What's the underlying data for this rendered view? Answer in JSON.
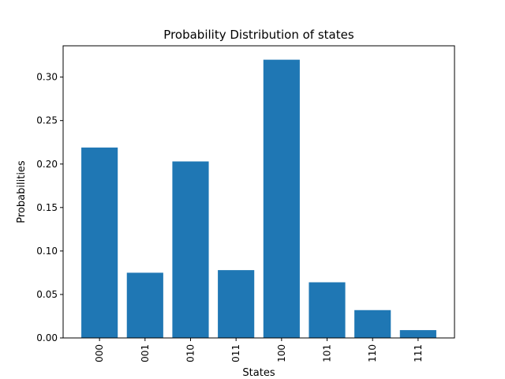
{
  "chart_data": {
    "type": "bar",
    "title": "Probability Distribution of states",
    "xlabel": "States",
    "ylabel": "Probabilities",
    "categories": [
      "000",
      "001",
      "010",
      "011",
      "100",
      "101",
      "110",
      "111"
    ],
    "values": [
      0.219,
      0.075,
      0.203,
      0.078,
      0.32,
      0.064,
      0.032,
      0.009
    ],
    "ylim": [
      0,
      0.336
    ],
    "yticks": [
      "0.00",
      "0.05",
      "0.10",
      "0.15",
      "0.20",
      "0.25",
      "0.30"
    ],
    "bar_color": "#1f77b4",
    "grid": false,
    "legend": "none"
  }
}
